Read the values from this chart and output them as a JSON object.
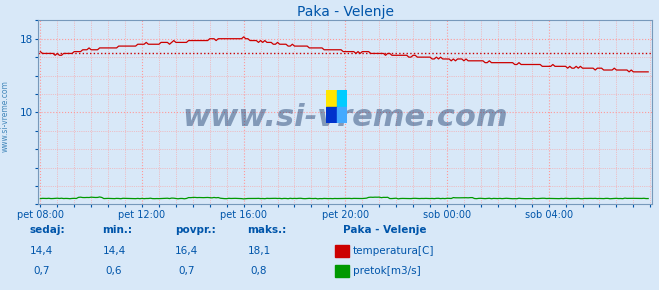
{
  "title": "Paka - Velenje",
  "bg_color": "#d8e8f8",
  "plot_bg_color": "#d8e8f8",
  "grid_color": "#ff9999",
  "grid_style": ":",
  "ylim": [
    0,
    20
  ],
  "xlabel_color": "#0055aa",
  "ylabel_color": "#0055aa",
  "title_color": "#0055aa",
  "xtick_labels": [
    "pet 08:00",
    "pet 12:00",
    "pet 16:00",
    "pet 20:00",
    "sob 00:00",
    "sob 04:00"
  ],
  "temp_color": "#cc0000",
  "flow_color": "#009900",
  "avg_line_color": "#cc0000",
  "avg_value": 16.4,
  "watermark": "www.si-vreme.com",
  "watermark_color": "#1a3a6a",
  "watermark_fontsize": 22,
  "sidebar_text": "www.si-vreme.com",
  "sidebar_color": "#4488bb",
  "legend_title": "Paka - Velenje",
  "legend_items": [
    "temperatura[C]",
    "pretok[m3/s]"
  ],
  "legend_colors": [
    "#cc0000",
    "#009900"
  ],
  "table_headers": [
    "sedaj:",
    "min.:",
    "povpr.:",
    "maks.:"
  ],
  "table_values_temp": [
    "14,4",
    "14,4",
    "16,4",
    "18,1"
  ],
  "table_values_flow": [
    "0,7",
    "0,6",
    "0,7",
    "0,8"
  ],
  "table_color": "#0055aa",
  "spine_color": "#7799bb",
  "logo_colors": [
    "#FFE600",
    "#00CCFF",
    "#0033CC",
    "#44AAFF"
  ]
}
